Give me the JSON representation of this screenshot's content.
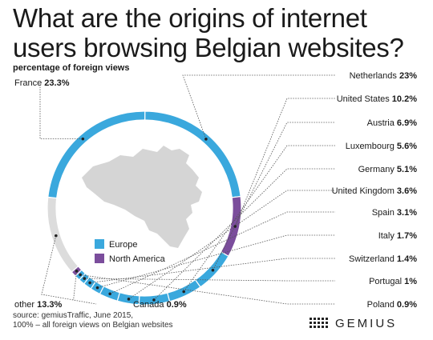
{
  "header": {
    "title": "What are the origins of internet users browsing Belgian websites?",
    "subtitle": "percentage of foreign views"
  },
  "footer": {
    "source": "source: gemiusTraffic, June 2015,",
    "note": "100% – all foreign views on Belgian websites"
  },
  "logo": {
    "word": "GEMIUS",
    "icon": "gemius-dot-grid-icon"
  },
  "colors": {
    "europe": "#3aa8dd",
    "north_america": "#7b4d9c",
    "other": "#dcdcdc",
    "map": "#d5d5d5",
    "leader": "#555555"
  },
  "legend_items": [
    {
      "label": "Europe",
      "color": "#3aa8dd"
    },
    {
      "label": "North America",
      "color": "#7b4d9c"
    }
  ],
  "chart_data": {
    "type": "pie",
    "style": "donut",
    "subtitle": "percentage of foreign views",
    "slices": [
      {
        "label": "Netherlands",
        "value": 23,
        "display": "23%",
        "group": "Europe"
      },
      {
        "label": "United States",
        "value": 10.2,
        "display": "10.2%",
        "group": "North America"
      },
      {
        "label": "Austria",
        "value": 6.9,
        "display": "6.9%",
        "group": "Europe"
      },
      {
        "label": "Luxembourg",
        "value": 5.6,
        "display": "5.6%",
        "group": "Europe"
      },
      {
        "label": "Germany",
        "value": 5.1,
        "display": "5.1%",
        "group": "Europe"
      },
      {
        "label": "United Kingdom",
        "value": 3.6,
        "display": "3.6%",
        "group": "Europe"
      },
      {
        "label": "Spain",
        "value": 3.1,
        "display": "3.1%",
        "group": "Europe"
      },
      {
        "label": "Italy",
        "value": 1.7,
        "display": "1.7%",
        "group": "Europe"
      },
      {
        "label": "Switzerland",
        "value": 1.4,
        "display": "1.4%",
        "group": "Europe"
      },
      {
        "label": "Portugal",
        "value": 1,
        "display": "1%",
        "group": "Europe"
      },
      {
        "label": "Poland",
        "value": 0.9,
        "display": "0.9%",
        "group": "Europe"
      },
      {
        "label": "Canada",
        "value": 0.9,
        "display": "0.9%",
        "group": "North America"
      },
      {
        "label": "other",
        "value": 13.3,
        "display": "13.3%",
        "group": "other"
      },
      {
        "label": "France",
        "value": 23.3,
        "display": "23.3%",
        "group": "Europe"
      }
    ],
    "legend": [
      "Europe",
      "North America"
    ],
    "legend_placement": "inside-left"
  }
}
